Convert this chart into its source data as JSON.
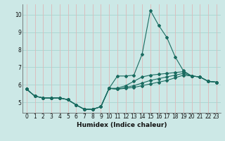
{
  "xlabel": "Humidex (Indice chaleur)",
  "background_color": "#cce8e6",
  "grid_color_h": "#a8d4d0",
  "grid_color_v": "#ddb8b8",
  "line_color": "#1a6b60",
  "xlim": [
    -0.5,
    23.5
  ],
  "ylim": [
    4.4,
    10.6
  ],
  "yticks": [
    5,
    6,
    7,
    8,
    9,
    10
  ],
  "xticks": [
    0,
    1,
    2,
    3,
    4,
    5,
    6,
    7,
    8,
    9,
    10,
    11,
    12,
    13,
    14,
    15,
    16,
    17,
    18,
    19,
    20,
    21,
    22,
    23
  ],
  "curves": [
    [
      5.75,
      5.35,
      5.25,
      5.25,
      5.25,
      5.15,
      4.85,
      4.6,
      4.6,
      4.75,
      5.8,
      6.5,
      6.5,
      6.55,
      7.75,
      10.25,
      9.4,
      8.7,
      7.6,
      6.8,
      6.5,
      6.45,
      6.2,
      6.15
    ],
    [
      5.75,
      5.35,
      5.25,
      5.25,
      5.25,
      5.15,
      4.85,
      4.6,
      4.6,
      4.75,
      5.8,
      5.8,
      5.95,
      6.2,
      6.45,
      6.55,
      6.6,
      6.65,
      6.7,
      6.75,
      6.5,
      6.45,
      6.2,
      6.15
    ],
    [
      5.75,
      5.35,
      5.25,
      5.25,
      5.25,
      5.15,
      4.85,
      4.6,
      4.6,
      4.75,
      5.8,
      5.75,
      5.85,
      5.95,
      6.1,
      6.25,
      6.35,
      6.45,
      6.55,
      6.65,
      6.5,
      6.45,
      6.2,
      6.15
    ],
    [
      5.75,
      5.35,
      5.25,
      5.25,
      5.25,
      5.15,
      4.85,
      4.6,
      4.6,
      4.75,
      5.8,
      5.75,
      5.8,
      5.85,
      5.95,
      6.05,
      6.15,
      6.25,
      6.4,
      6.55,
      6.5,
      6.45,
      6.2,
      6.15
    ]
  ]
}
